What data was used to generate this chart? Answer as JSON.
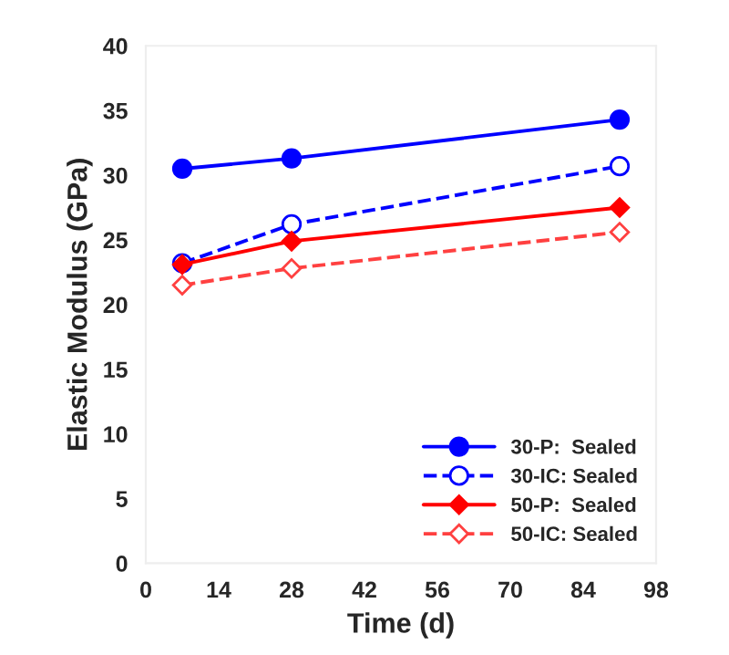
{
  "chart_data": {
    "type": "line",
    "xlabel": "Time (d)",
    "ylabel": "Elastic Modulus (GPa)",
    "xlim": [
      0,
      98
    ],
    "xticks": [
      0,
      14,
      28,
      42,
      56,
      70,
      84,
      98
    ],
    "ylim": [
      0,
      40
    ],
    "yticks": [
      0,
      5,
      10,
      15,
      20,
      25,
      30,
      35,
      40
    ],
    "grid": false,
    "legend": "bottom right",
    "series": [
      {
        "name": "30-P:  Sealed",
        "color": "#0000ff",
        "x": [
          7,
          28,
          91
        ],
        "values": [
          30.5,
          31.3,
          34.3
        ],
        "marker": "circle",
        "line_style": "solid"
      },
      {
        "name": "30-IC: Sealed",
        "color": "#0000ff",
        "x": [
          7,
          28,
          91
        ],
        "values": [
          23.2,
          26.2,
          30.7
        ],
        "marker": "circle",
        "line_style": "dashed"
      },
      {
        "name": "50-P:  Sealed",
        "color": "#ff0000",
        "x": [
          7,
          28,
          91
        ],
        "values": [
          23.1,
          24.9,
          27.5
        ],
        "marker": "diamond",
        "line_style": "solid"
      },
      {
        "name": "50-IC: Sealed",
        "color": "#ff4040",
        "x": [
          7,
          28,
          91
        ],
        "values": [
          21.5,
          22.8,
          25.6
        ],
        "marker": "diamond",
        "line_style": "dashed"
      }
    ]
  }
}
